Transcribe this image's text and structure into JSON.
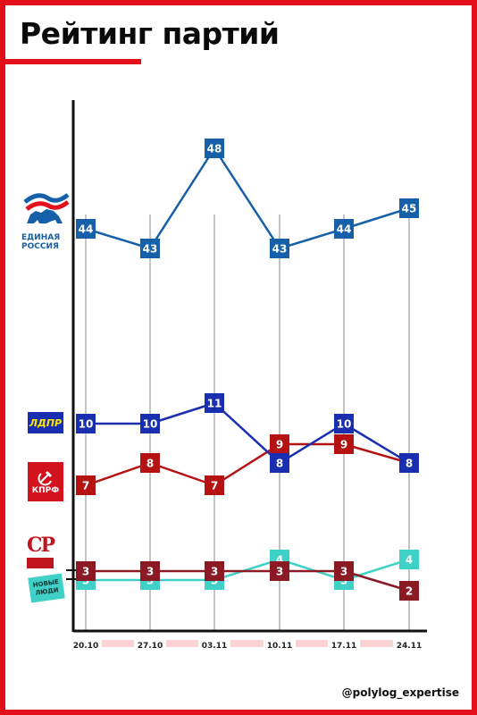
{
  "title": "Рейтинг партий",
  "handle": "@polylog_expertise",
  "logos": {
    "er": {
      "line1": "ЕДИНАЯ",
      "line2": "РОССИЯ"
    },
    "ldpr": "ЛДПР",
    "kprf": "КПРФ",
    "sr": "СР",
    "nl": {
      "line1": "НОВЫЕ",
      "line2": "ЛЮДИ"
    }
  },
  "colors": {
    "accent": "#e3101c",
    "er": "#1560a8",
    "ldpr": "#1a2fb0",
    "kprf": "#b51313",
    "sr": "#8b1a24",
    "nl": "#3fd1c7"
  },
  "chart_data": {
    "type": "line",
    "categories": [
      "20.10",
      "27.10",
      "03.11",
      "10.11",
      "17.11",
      "24.11"
    ],
    "series": [
      {
        "key": "er",
        "values": [
          44,
          43,
          48,
          43,
          44,
          45
        ]
      },
      {
        "key": "ldpr",
        "values": [
          10,
          10,
          11,
          8,
          10,
          8
        ]
      },
      {
        "key": "kprf",
        "values": [
          7,
          8,
          7,
          9,
          9,
          8
        ]
      },
      {
        "key": "sr",
        "values": [
          3,
          3,
          3,
          3,
          3,
          2
        ]
      },
      {
        "key": "nl",
        "values": [
          3,
          3,
          3,
          4,
          3,
          4
        ]
      }
    ]
  }
}
